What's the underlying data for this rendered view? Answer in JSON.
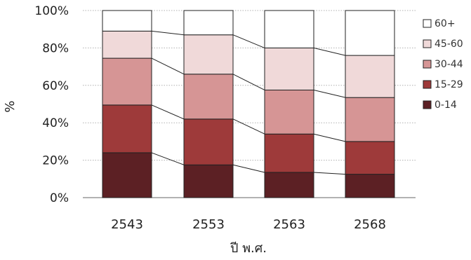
{
  "chart_data": {
    "type": "bar",
    "stacked": true,
    "normalized": true,
    "categories": [
      "2543",
      "2553",
      "2563",
      "2568"
    ],
    "series": [
      {
        "name": "0-14",
        "color": "#5c2024",
        "values": [
          24,
          17.5,
          13.5,
          12.5
        ]
      },
      {
        "name": "15-29",
        "color": "#9e3a3a",
        "values": [
          25.5,
          24.5,
          20.5,
          17.5
        ]
      },
      {
        "name": "30-44",
        "color": "#d69595",
        "values": [
          25,
          24,
          23.5,
          23.5
        ]
      },
      {
        "name": "45-60",
        "color": "#f0d9d9",
        "values": [
          14.5,
          21,
          22.5,
          22.5
        ]
      },
      {
        "name": "60+",
        "color": "#ffffff",
        "values": [
          11,
          13,
          20,
          24
        ]
      }
    ],
    "yticks": [
      "0%",
      "20%",
      "40%",
      "60%",
      "80%",
      "100%"
    ],
    "ylim": [
      0,
      100
    ],
    "xlabel": "ปี พ.ศ.",
    "ylabel": "%",
    "grid": true,
    "legend": "right"
  }
}
